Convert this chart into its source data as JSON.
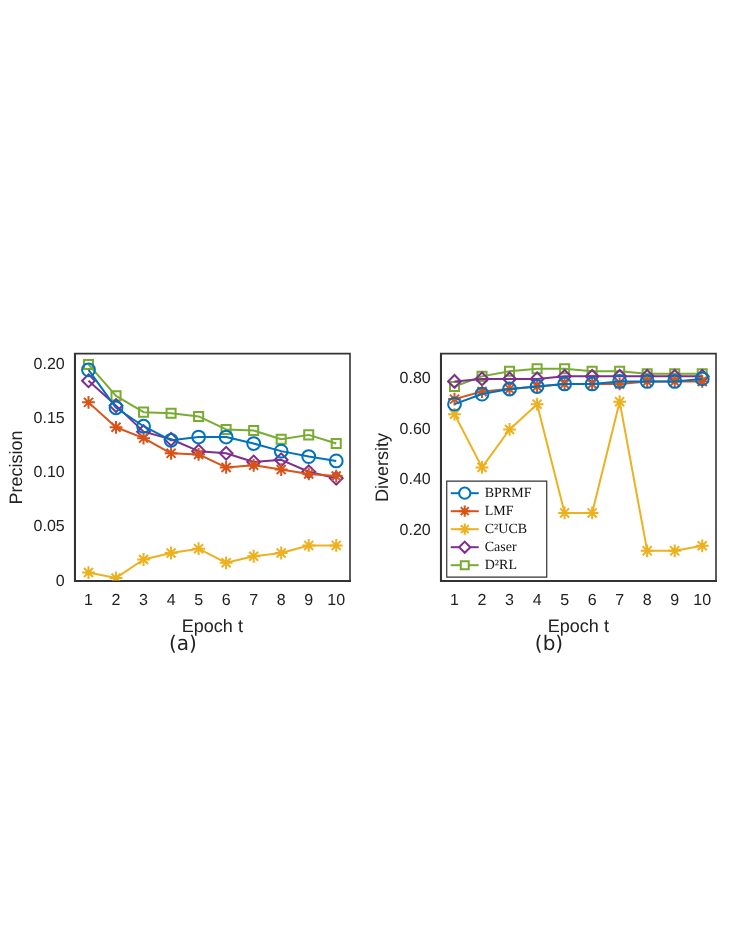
{
  "chart_data": [
    {
      "type": "line",
      "xlabel": "Epoch t",
      "ylabel": "Precision",
      "annotations": [
        "(a)"
      ],
      "x": [
        1,
        2,
        3,
        4,
        5,
        6,
        7,
        8,
        9,
        10
      ],
      "xlim": [
        0.5,
        10.5
      ],
      "xticks": [
        1,
        2,
        3,
        4,
        5,
        6,
        7,
        8,
        9,
        10
      ],
      "ylim": [
        0,
        0.21
      ],
      "yticks": [
        0,
        {
          "value": 0.05,
          "label": "0.05"
        },
        {
          "value": 0.1,
          "label": "0.10"
        },
        {
          "value": 0.15,
          "label": "0.15"
        },
        {
          "value": 0.2,
          "label": "0.20"
        }
      ],
      "grid": false,
      "legend": false,
      "series": [
        {
          "color": "#0072bd",
          "marker": "circle",
          "values": [
            0.195,
            0.16,
            0.143,
            0.13,
            0.133,
            0.133,
            0.127,
            0.12,
            0.115,
            0.111
          ]
        },
        {
          "color": "#d95319",
          "marker": "cross",
          "values": [
            0.165,
            0.142,
            0.132,
            0.118,
            0.117,
            0.105,
            0.107,
            0.103,
            0.099,
            0.097
          ]
        },
        {
          "color": "#edb120",
          "marker": "cross",
          "values": [
            0.008,
            0.003,
            0.02,
            0.026,
            0.03,
            0.017,
            0.023,
            0.026,
            0.033,
            0.033
          ]
        },
        {
          "color": "#7e2f8e",
          "marker": "diamond",
          "values": [
            0.185,
            0.162,
            0.138,
            0.131,
            0.12,
            0.118,
            0.11,
            0.112,
            0.101,
            0.095
          ]
        },
        {
          "color": "#77ac30",
          "marker": "square",
          "values": [
            0.2,
            0.171,
            0.156,
            0.155,
            0.152,
            0.14,
            0.139,
            0.131,
            0.135,
            0.127
          ]
        }
      ]
    },
    {
      "type": "line",
      "xlabel": "Epoch t",
      "ylabel": "Diversity",
      "annotations": [
        "(b)"
      ],
      "x": [
        1,
        2,
        3,
        4,
        5,
        6,
        7,
        8,
        9,
        10
      ],
      "xlim": [
        0.5,
        10.5
      ],
      "xticks": [
        1,
        2,
        3,
        4,
        5,
        6,
        7,
        8,
        9,
        10
      ],
      "ylim": [
        0,
        0.9
      ],
      "yticks": [
        {
          "value": 0.2,
          "label": "0.20"
        },
        {
          "value": 0.4,
          "label": "0.40"
        },
        {
          "value": 0.6,
          "label": "0.60"
        },
        {
          "value": 0.8,
          "label": "0.80"
        }
      ],
      "grid": false,
      "legend": "bottom left",
      "series": [
        {
          "name": "BPRMF",
          "color": "#0072bd",
          "marker": "circle",
          "values": [
            0.7,
            0.74,
            0.76,
            0.77,
            0.78,
            0.78,
            0.79,
            0.79,
            0.79,
            0.8
          ]
        },
        {
          "name": "LMF",
          "color": "#d95319",
          "marker": "cross",
          "values": [
            0.72,
            0.75,
            0.76,
            0.77,
            0.78,
            0.78,
            0.78,
            0.79,
            0.79,
            0.79
          ]
        },
        {
          "name": "C²UCB",
          "color": "#edb120",
          "marker": "cross",
          "values": [
            0.66,
            0.45,
            0.6,
            0.7,
            0.27,
            0.27,
            0.71,
            0.12,
            0.12,
            0.14
          ]
        },
        {
          "name": "Caser",
          "color": "#7e2f8e",
          "marker": "diamond",
          "values": [
            0.79,
            0.8,
            0.8,
            0.8,
            0.81,
            0.81,
            0.81,
            0.81,
            0.81,
            0.81
          ]
        },
        {
          "name": "D²RL",
          "color": "#77ac30",
          "marker": "square",
          "values": [
            0.77,
            0.81,
            0.83,
            0.84,
            0.84,
            0.83,
            0.83,
            0.82,
            0.82,
            0.82
          ]
        }
      ]
    }
  ]
}
